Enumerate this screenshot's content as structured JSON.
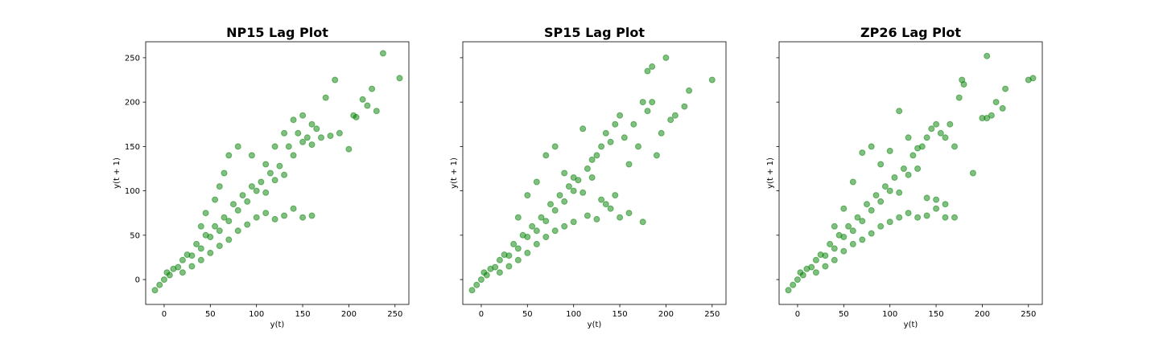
{
  "figure": {
    "background": "#ffffff",
    "marker_color": "#008000",
    "marker_opacity": 0.5,
    "shared_y_axis": true
  },
  "chart_data": [
    {
      "type": "scatter",
      "title": "NP15 Lag Plot",
      "xlabel": "y(t)",
      "ylabel": "y(t + 1)",
      "xlim": [
        -20,
        265
      ],
      "ylim": [
        -28,
        268
      ],
      "xticks": [
        0,
        50,
        100,
        150,
        200,
        250
      ],
      "yticks": [
        0,
        50,
        100,
        150,
        200,
        250
      ],
      "show_y_tick_labels": true,
      "grid": false,
      "points": [
        [
          -10,
          -12
        ],
        [
          -5,
          -6
        ],
        [
          0,
          0
        ],
        [
          3,
          8
        ],
        [
          6,
          5
        ],
        [
          10,
          12
        ],
        [
          15,
          14
        ],
        [
          20,
          22
        ],
        [
          25,
          28
        ],
        [
          30,
          27
        ],
        [
          35,
          40
        ],
        [
          40,
          35
        ],
        [
          45,
          50
        ],
        [
          50,
          48
        ],
        [
          55,
          60
        ],
        [
          60,
          55
        ],
        [
          65,
          70
        ],
        [
          70,
          66
        ],
        [
          75,
          85
        ],
        [
          80,
          78
        ],
        [
          85,
          95
        ],
        [
          90,
          88
        ],
        [
          95,
          105
        ],
        [
          100,
          100
        ],
        [
          105,
          110
        ],
        [
          110,
          98
        ],
        [
          115,
          120
        ],
        [
          120,
          112
        ],
        [
          125,
          128
        ],
        [
          130,
          118
        ],
        [
          135,
          150
        ],
        [
          140,
          140
        ],
        [
          145,
          165
        ],
        [
          150,
          155
        ],
        [
          155,
          160
        ],
        [
          160,
          152
        ],
        [
          165,
          170
        ],
        [
          170,
          160
        ],
        [
          175,
          205
        ],
        [
          180,
          162
        ],
        [
          185,
          225
        ],
        [
          190,
          165
        ],
        [
          200,
          147
        ],
        [
          205,
          185
        ],
        [
          208,
          183
        ],
        [
          215,
          203
        ],
        [
          220,
          196
        ],
        [
          225,
          215
        ],
        [
          230,
          190
        ],
        [
          237,
          255
        ],
        [
          255,
          227
        ],
        [
          40,
          60
        ],
        [
          45,
          75
        ],
        [
          55,
          90
        ],
        [
          60,
          105
        ],
        [
          65,
          120
        ],
        [
          70,
          140
        ],
        [
          80,
          150
        ],
        [
          95,
          140
        ],
        [
          110,
          130
        ],
        [
          120,
          150
        ],
        [
          130,
          165
        ],
        [
          140,
          180
        ],
        [
          150,
          185
        ],
        [
          160,
          175
        ],
        [
          20,
          8
        ],
        [
          30,
          15
        ],
        [
          40,
          22
        ],
        [
          50,
          30
        ],
        [
          60,
          38
        ],
        [
          70,
          45
        ],
        [
          80,
          55
        ],
        [
          90,
          62
        ],
        [
          100,
          70
        ],
        [
          110,
          75
        ],
        [
          120,
          68
        ],
        [
          130,
          72
        ],
        [
          140,
          80
        ],
        [
          150,
          70
        ],
        [
          160,
          72
        ]
      ]
    },
    {
      "type": "scatter",
      "title": "SP15 Lag Plot",
      "xlabel": "y(t)",
      "ylabel": "y(t + 1)",
      "xlim": [
        -20,
        265
      ],
      "ylim": [
        -28,
        268
      ],
      "xticks": [
        0,
        50,
        100,
        150,
        200,
        250
      ],
      "yticks": [
        0,
        50,
        100,
        150,
        200,
        250
      ],
      "show_y_tick_labels": false,
      "grid": false,
      "points": [
        [
          -10,
          -12
        ],
        [
          -5,
          -6
        ],
        [
          0,
          0
        ],
        [
          3,
          8
        ],
        [
          6,
          5
        ],
        [
          10,
          12
        ],
        [
          15,
          14
        ],
        [
          20,
          22
        ],
        [
          25,
          28
        ],
        [
          30,
          27
        ],
        [
          35,
          40
        ],
        [
          40,
          35
        ],
        [
          45,
          50
        ],
        [
          50,
          48
        ],
        [
          55,
          60
        ],
        [
          60,
          55
        ],
        [
          65,
          70
        ],
        [
          70,
          66
        ],
        [
          75,
          85
        ],
        [
          80,
          78
        ],
        [
          85,
          95
        ],
        [
          90,
          88
        ],
        [
          95,
          105
        ],
        [
          100,
          100
        ],
        [
          105,
          112
        ],
        [
          110,
          98
        ],
        [
          115,
          125
        ],
        [
          120,
          115
        ],
        [
          125,
          140
        ],
        [
          130,
          150
        ],
        [
          135,
          165
        ],
        [
          140,
          155
        ],
        [
          145,
          175
        ],
        [
          150,
          185
        ],
        [
          155,
          160
        ],
        [
          165,
          175
        ],
        [
          175,
          200
        ],
        [
          180,
          235
        ],
        [
          185,
          240
        ],
        [
          190,
          140
        ],
        [
          195,
          165
        ],
        [
          200,
          250
        ],
        [
          205,
          180
        ],
        [
          210,
          185
        ],
        [
          220,
          195
        ],
        [
          225,
          213
        ],
        [
          250,
          225
        ],
        [
          40,
          70
        ],
        [
          50,
          95
        ],
        [
          60,
          110
        ],
        [
          70,
          140
        ],
        [
          80,
          150
        ],
        [
          90,
          120
        ],
        [
          100,
          115
        ],
        [
          110,
          170
        ],
        [
          120,
          135
        ],
        [
          130,
          90
        ],
        [
          140,
          80
        ],
        [
          150,
          70
        ],
        [
          160,
          75
        ],
        [
          175,
          65
        ],
        [
          20,
          8
        ],
        [
          30,
          15
        ],
        [
          40,
          22
        ],
        [
          50,
          30
        ],
        [
          60,
          40
        ],
        [
          70,
          48
        ],
        [
          80,
          55
        ],
        [
          90,
          60
        ],
        [
          100,
          65
        ],
        [
          115,
          72
        ],
        [
          125,
          68
        ],
        [
          135,
          85
        ],
        [
          145,
          95
        ],
        [
          160,
          130
        ],
        [
          170,
          150
        ],
        [
          180,
          190
        ],
        [
          185,
          200
        ]
      ]
    },
    {
      "type": "scatter",
      "title": "ZP26 Lag Plot",
      "xlabel": "y(t)",
      "ylabel": "y(t + 1)",
      "xlim": [
        -20,
        265
      ],
      "ylim": [
        -28,
        268
      ],
      "xticks": [
        0,
        50,
        100,
        150,
        200,
        250
      ],
      "yticks": [
        0,
        50,
        100,
        150,
        200,
        250
      ],
      "show_y_tick_labels": false,
      "grid": false,
      "points": [
        [
          -10,
          -12
        ],
        [
          -5,
          -6
        ],
        [
          0,
          0
        ],
        [
          3,
          8
        ],
        [
          6,
          5
        ],
        [
          10,
          12
        ],
        [
          15,
          14
        ],
        [
          20,
          22
        ],
        [
          25,
          28
        ],
        [
          30,
          27
        ],
        [
          35,
          40
        ],
        [
          40,
          35
        ],
        [
          45,
          50
        ],
        [
          50,
          48
        ],
        [
          55,
          60
        ],
        [
          60,
          55
        ],
        [
          65,
          70
        ],
        [
          70,
          66
        ],
        [
          75,
          85
        ],
        [
          80,
          78
        ],
        [
          85,
          95
        ],
        [
          90,
          88
        ],
        [
          95,
          105
        ],
        [
          100,
          100
        ],
        [
          105,
          115
        ],
        [
          110,
          98
        ],
        [
          115,
          125
        ],
        [
          120,
          118
        ],
        [
          125,
          140
        ],
        [
          130,
          148
        ],
        [
          135,
          150
        ],
        [
          140,
          160
        ],
        [
          145,
          170
        ],
        [
          150,
          175
        ],
        [
          155,
          165
        ],
        [
          160,
          160
        ],
        [
          165,
          175
        ],
        [
          170,
          150
        ],
        [
          175,
          205
        ],
        [
          178,
          225
        ],
        [
          180,
          220
        ],
        [
          190,
          120
        ],
        [
          200,
          182
        ],
        [
          205,
          182
        ],
        [
          210,
          185
        ],
        [
          215,
          200
        ],
        [
          222,
          193
        ],
        [
          225,
          215
        ],
        [
          250,
          225
        ],
        [
          255,
          227
        ],
        [
          205,
          252
        ],
        [
          40,
          60
        ],
        [
          50,
          80
        ],
        [
          60,
          110
        ],
        [
          70,
          143
        ],
        [
          80,
          150
        ],
        [
          90,
          130
        ],
        [
          100,
          145
        ],
        [
          110,
          190
        ],
        [
          120,
          160
        ],
        [
          130,
          125
        ],
        [
          140,
          92
        ],
        [
          150,
          90
        ],
        [
          160,
          70
        ],
        [
          170,
          70
        ],
        [
          20,
          8
        ],
        [
          30,
          15
        ],
        [
          40,
          22
        ],
        [
          50,
          32
        ],
        [
          60,
          40
        ],
        [
          70,
          45
        ],
        [
          80,
          52
        ],
        [
          90,
          60
        ],
        [
          100,
          65
        ],
        [
          110,
          70
        ],
        [
          120,
          75
        ],
        [
          130,
          70
        ],
        [
          140,
          72
        ],
        [
          150,
          80
        ],
        [
          160,
          85
        ]
      ]
    }
  ]
}
